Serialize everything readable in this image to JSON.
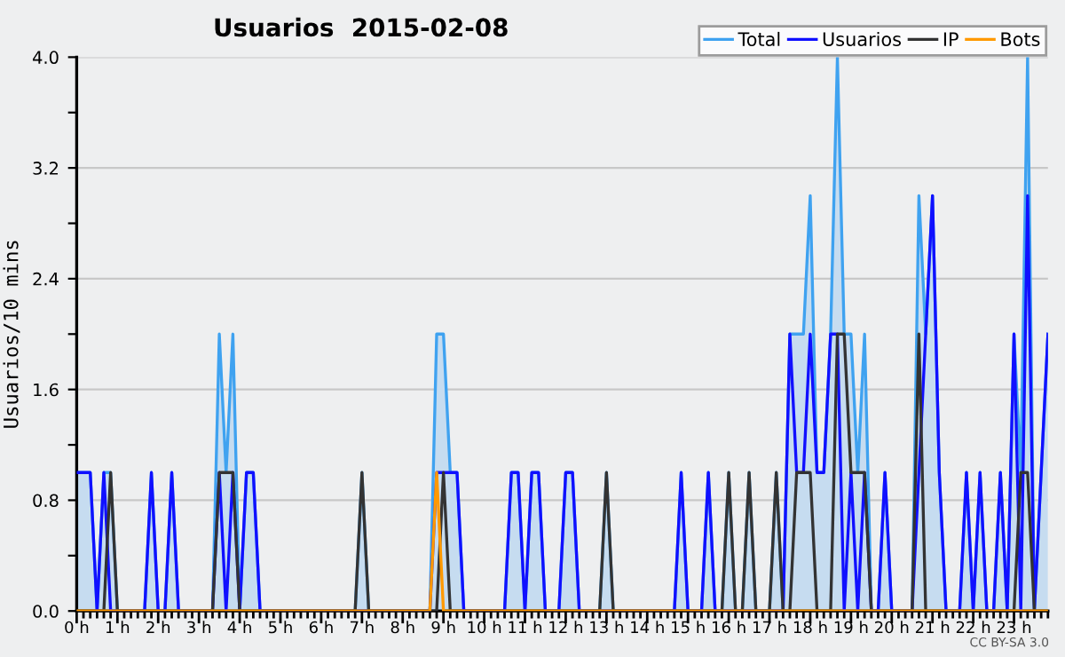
{
  "chart_data": {
    "type": "line",
    "title": "Usuarios  2015-02-08",
    "ylabel": "Usuarios/10 mins",
    "annotations": [
      "CC BY-SA 3.0"
    ],
    "categories": [
      "0 h",
      null,
      null,
      null,
      null,
      null,
      "1 h",
      null,
      null,
      null,
      null,
      null,
      "2 h",
      null,
      null,
      null,
      null,
      null,
      "3 h",
      null,
      null,
      null,
      null,
      null,
      "4 h",
      null,
      null,
      null,
      null,
      null,
      "5 h",
      null,
      null,
      null,
      null,
      null,
      "6 h",
      null,
      null,
      null,
      null,
      null,
      "7 h",
      null,
      null,
      null,
      null,
      null,
      "8 h",
      null,
      null,
      null,
      null,
      null,
      "9 h",
      null,
      null,
      null,
      null,
      null,
      "10 h",
      null,
      null,
      null,
      null,
      null,
      "11 h",
      null,
      null,
      null,
      null,
      null,
      "12 h",
      null,
      null,
      null,
      null,
      null,
      "13 h",
      null,
      null,
      null,
      null,
      null,
      "14 h",
      null,
      null,
      null,
      null,
      null,
      "15 h",
      null,
      null,
      null,
      null,
      null,
      "16 h",
      null,
      null,
      null,
      null,
      null,
      "17 h",
      null,
      null,
      null,
      null,
      null,
      "18 h",
      null,
      null,
      null,
      null,
      null,
      "19 h",
      null,
      null,
      null,
      null,
      null,
      "20 h",
      null,
      null,
      null,
      null,
      null,
      "21 h",
      null,
      null,
      null,
      null,
      null,
      "22 h",
      null,
      null,
      null,
      null,
      null,
      "23 h",
      null,
      null,
      null,
      null,
      null
    ],
    "series": [
      {
        "name": "Total",
        "type": "area",
        "color": "#3fa2f0",
        "values": [
          1,
          1,
          1,
          0,
          1,
          1,
          0,
          0,
          0,
          0,
          0,
          1,
          0,
          0,
          1,
          0,
          0,
          0,
          0,
          0,
          0,
          2,
          1,
          2,
          0,
          1,
          1,
          0,
          0,
          0,
          0,
          0,
          0,
          0,
          0,
          0,
          0,
          0,
          0,
          0,
          0,
          0,
          1,
          0,
          0,
          0,
          0,
          0,
          0,
          0,
          0,
          0,
          0,
          2,
          2,
          1,
          1,
          0,
          0,
          0,
          0,
          0,
          0,
          0,
          1,
          1,
          0,
          1,
          1,
          0,
          0,
          0,
          1,
          1,
          0,
          0,
          0,
          0,
          1,
          0,
          0,
          0,
          0,
          0,
          0,
          0,
          0,
          0,
          0,
          1,
          0,
          0,
          0,
          1,
          0,
          0,
          1,
          0,
          0,
          1,
          0,
          0,
          0,
          1,
          0,
          2,
          2,
          2,
          3,
          1,
          1,
          2,
          4,
          2,
          2,
          1,
          2,
          0,
          0,
          1,
          0,
          0,
          0,
          0,
          3,
          2,
          3,
          1,
          0,
          0,
          0,
          1,
          0,
          1,
          0,
          0,
          1,
          0,
          2,
          1,
          4,
          0,
          1,
          2
        ]
      },
      {
        "name": "Usuarios",
        "type": "line",
        "color": "#1010ff",
        "values": [
          1,
          1,
          1,
          0,
          1,
          0,
          0,
          0,
          0,
          0,
          0,
          1,
          0,
          0,
          1,
          0,
          0,
          0,
          0,
          0,
          0,
          1,
          0,
          1,
          0,
          1,
          1,
          0,
          0,
          0,
          0,
          0,
          0,
          0,
          0,
          0,
          0,
          0,
          0,
          0,
          0,
          0,
          0,
          0,
          0,
          0,
          0,
          0,
          0,
          0,
          0,
          0,
          0,
          1,
          1,
          1,
          1,
          0,
          0,
          0,
          0,
          0,
          0,
          0,
          1,
          1,
          0,
          1,
          1,
          0,
          0,
          0,
          1,
          1,
          0,
          0,
          0,
          0,
          0,
          0,
          0,
          0,
          0,
          0,
          0,
          0,
          0,
          0,
          0,
          1,
          0,
          0,
          0,
          1,
          0,
          0,
          0,
          0,
          0,
          0,
          0,
          0,
          0,
          0,
          0,
          2,
          1,
          1,
          2,
          1,
          1,
          2,
          2,
          0,
          1,
          0,
          1,
          0,
          0,
          1,
          0,
          0,
          0,
          0,
          1,
          2,
          3,
          1,
          0,
          0,
          0,
          1,
          0,
          1,
          0,
          0,
          1,
          0,
          2,
          0,
          3,
          0,
          1,
          2
        ]
      },
      {
        "name": "IP",
        "type": "line",
        "color": "#333333",
        "values": [
          0,
          0,
          0,
          0,
          0,
          1,
          0,
          0,
          0,
          0,
          0,
          0,
          0,
          0,
          0,
          0,
          0,
          0,
          0,
          0,
          0,
          1,
          1,
          1,
          0,
          0,
          0,
          0,
          0,
          0,
          0,
          0,
          0,
          0,
          0,
          0,
          0,
          0,
          0,
          0,
          0,
          0,
          1,
          0,
          0,
          0,
          0,
          0,
          0,
          0,
          0,
          0,
          0,
          0,
          1,
          0,
          0,
          0,
          0,
          0,
          0,
          0,
          0,
          0,
          0,
          0,
          0,
          0,
          0,
          0,
          0,
          0,
          0,
          0,
          0,
          0,
          0,
          0,
          1,
          0,
          0,
          0,
          0,
          0,
          0,
          0,
          0,
          0,
          0,
          0,
          0,
          0,
          0,
          0,
          0,
          0,
          1,
          0,
          0,
          1,
          0,
          0,
          0,
          1,
          0,
          0,
          1,
          1,
          1,
          0,
          0,
          0,
          2,
          2,
          1,
          1,
          1,
          0,
          0,
          0,
          0,
          0,
          0,
          0,
          2,
          0,
          0,
          0,
          0,
          0,
          0,
          0,
          0,
          0,
          0,
          0,
          0,
          0,
          0,
          1,
          1,
          0,
          0,
          0
        ]
      },
      {
        "name": "Bots",
        "type": "line",
        "color": "#ff9900",
        "values": [
          0,
          0,
          0,
          0,
          0,
          0,
          0,
          0,
          0,
          0,
          0,
          0,
          0,
          0,
          0,
          0,
          0,
          0,
          0,
          0,
          0,
          0,
          0,
          0,
          0,
          0,
          0,
          0,
          0,
          0,
          0,
          0,
          0,
          0,
          0,
          0,
          0,
          0,
          0,
          0,
          0,
          0,
          0,
          0,
          0,
          0,
          0,
          0,
          0,
          0,
          0,
          0,
          0,
          1,
          0,
          0,
          0,
          0,
          0,
          0,
          0,
          0,
          0,
          0,
          0,
          0,
          0,
          0,
          0,
          0,
          0,
          0,
          0,
          0,
          0,
          0,
          0,
          0,
          0,
          0,
          0,
          0,
          0,
          0,
          0,
          0,
          0,
          0,
          0,
          0,
          0,
          0,
          0,
          0,
          0,
          0,
          0,
          0,
          0,
          0,
          0,
          0,
          0,
          0,
          0,
          0,
          0,
          0,
          0,
          0,
          0,
          0,
          0,
          0,
          0,
          0,
          0,
          0,
          0,
          0,
          0,
          0,
          0,
          0,
          0,
          0,
          0,
          0,
          0,
          0,
          0,
          0,
          0,
          0,
          0,
          0,
          0,
          0,
          0,
          0,
          0,
          0,
          0,
          0
        ]
      }
    ],
    "ylim": [
      0,
      4
    ],
    "yticks": [
      {
        "value": 0,
        "label": "0.0"
      },
      {
        "value": 0.4,
        "label": null
      },
      {
        "value": 0.8,
        "label": "0.8"
      },
      {
        "value": 1.2,
        "label": null
      },
      {
        "value": 1.6,
        "label": "1.6"
      },
      {
        "value": 2.0,
        "label": null
      },
      {
        "value": 2.4,
        "label": "2.4"
      },
      {
        "value": 2.8,
        "label": null
      },
      {
        "value": 3.2,
        "label": "3.2"
      },
      {
        "value": 3.6,
        "label": null
      },
      {
        "value": 4,
        "label": "4.0"
      }
    ],
    "grid": "y",
    "legend": "top right"
  }
}
